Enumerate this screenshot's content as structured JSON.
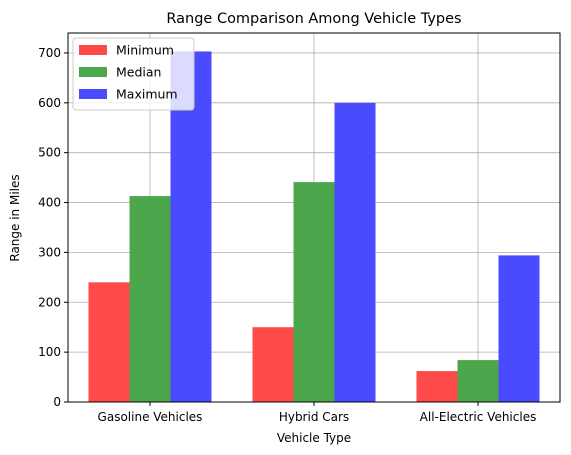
{
  "chart_data": {
    "type": "bar",
    "title": "Range Comparison Among Vehicle Types",
    "xlabel": "Vehicle Type",
    "ylabel": "Range in Miles",
    "categories": [
      "Gasoline Vehicles",
      "Hybrid Cars",
      "All-Electric Vehicles"
    ],
    "series": [
      {
        "name": "Minimum",
        "values": [
          240,
          150,
          62
        ],
        "color": "#ff4a4a"
      },
      {
        "name": "Median",
        "values": [
          413,
          441,
          84
        ],
        "color": "#4ca64c"
      },
      {
        "name": "Maximum",
        "values": [
          703,
          600,
          294
        ],
        "color": "#4a4aff"
      }
    ],
    "ylim": [
      0,
      740
    ],
    "yticks": [
      0,
      100,
      200,
      300,
      400,
      500,
      600,
      700
    ],
    "grid": true,
    "legend_position": "top-left"
  }
}
